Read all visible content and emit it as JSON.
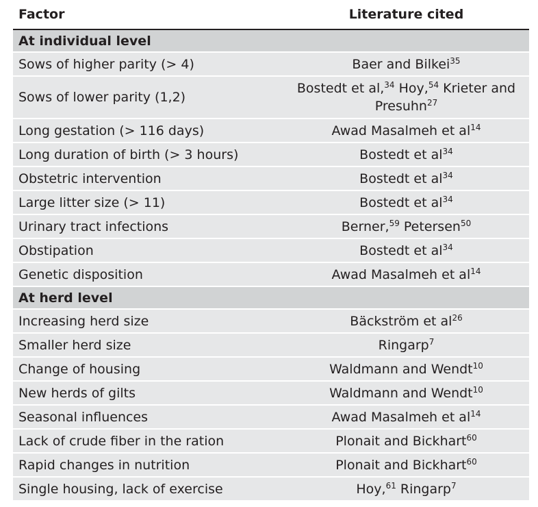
{
  "header": {
    "factor": "Factor",
    "literature": "Literature cited"
  },
  "rows": [
    {
      "kind": "section",
      "factor": "At individual level",
      "cite": []
    },
    {
      "kind": "shade",
      "factor": "Sows of higher parity (> 4)",
      "cite": [
        [
          "Baer and Bilkei",
          "35"
        ]
      ]
    },
    {
      "kind": "shade",
      "factor": "Sows of lower parity (1,2)",
      "cite": [
        [
          "Bostedt et al,",
          "34"
        ],
        [
          " Hoy,",
          "54"
        ],
        [
          " Krieter and Presuhn",
          "27"
        ]
      ]
    },
    {
      "kind": "shade",
      "factor": "Long gestation (> 116 days)",
      "cite": [
        [
          "Awad Masalmeh et al",
          "14"
        ]
      ]
    },
    {
      "kind": "shade",
      "factor": "Long duration of birth (> 3 hours)",
      "cite": [
        [
          "Bostedt et al",
          "34"
        ]
      ]
    },
    {
      "kind": "shade",
      "factor": "Obstetric intervention",
      "cite": [
        [
          "Bostedt et al",
          "34"
        ]
      ]
    },
    {
      "kind": "shade",
      "factor": "Large litter size (> 11)",
      "cite": [
        [
          "Bostedt et al",
          "34"
        ]
      ]
    },
    {
      "kind": "shade",
      "factor": "Urinary tract infections",
      "cite": [
        [
          "Berner,",
          "59"
        ],
        [
          " Petersen",
          "50"
        ]
      ]
    },
    {
      "kind": "shade",
      "factor": "Obstipation",
      "cite": [
        [
          "Bostedt et al",
          "34"
        ]
      ]
    },
    {
      "kind": "shade",
      "factor": "Genetic disposition",
      "cite": [
        [
          "Awad Masalmeh et al",
          "14"
        ]
      ]
    },
    {
      "kind": "section",
      "factor": "At herd level",
      "cite": []
    },
    {
      "kind": "shade",
      "factor": "Increasing herd size",
      "cite": [
        [
          "Bäckström et al",
          "26"
        ]
      ]
    },
    {
      "kind": "shade",
      "factor": "Smaller herd size",
      "cite": [
        [
          "Ringarp",
          "7"
        ]
      ]
    },
    {
      "kind": "shade",
      "factor": "Change of housing",
      "cite": [
        [
          "Waldmann and Wendt",
          "10"
        ]
      ]
    },
    {
      "kind": "shade",
      "factor": "New herds of gilts",
      "cite": [
        [
          "Waldmann and Wendt",
          "10"
        ]
      ]
    },
    {
      "kind": "shade",
      "factor": "Seasonal influences",
      "cite": [
        [
          "Awad Masalmeh et al",
          "14"
        ]
      ]
    },
    {
      "kind": "shade",
      "factor": "Lack of crude fiber in the ration",
      "cite": [
        [
          "Plonait and Bickhart",
          "60"
        ]
      ]
    },
    {
      "kind": "shade",
      "factor": "Rapid changes in nutrition",
      "cite": [
        [
          "Plonait and Bickhart",
          "60"
        ]
      ]
    },
    {
      "kind": "shade",
      "factor": "Single housing, lack of exercise",
      "cite": [
        [
          "Hoy,",
          "61"
        ],
        [
          " Ringarp",
          "7"
        ]
      ]
    }
  ]
}
